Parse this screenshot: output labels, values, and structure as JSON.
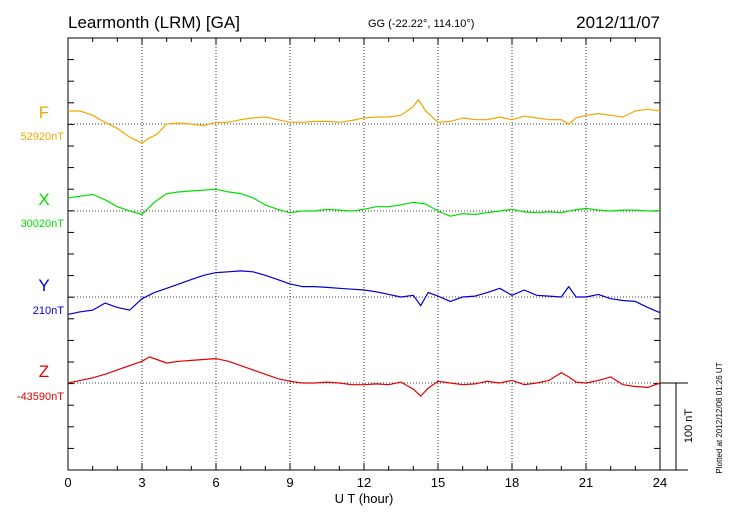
{
  "header": {
    "station": "Learmonth (LRM)  [GA]",
    "coords": "GG (-22.22°, 114.10°)",
    "date": "2012/11/07"
  },
  "footer": {
    "plotted": "Plotted at 2012/12/08 01:26 UT"
  },
  "scale_bar": {
    "label": "100 nT",
    "nT": 100
  },
  "chart_data": {
    "type": "line",
    "title": "Learmonth (LRM)  [GA]",
    "xlabel": "U T (hour)",
    "xlim": [
      0,
      24
    ],
    "xticks": [
      "0",
      "3",
      "6",
      "9",
      "12",
      "15",
      "18",
      "21",
      "24"
    ],
    "grid": true,
    "series": [
      {
        "name": "F",
        "baseline_label": "52920nT",
        "baseline_nT": 52920,
        "color": "#f0a800",
        "x": [
          0,
          0.5,
          1,
          1.5,
          2,
          2.5,
          3,
          3.3,
          3.6,
          4,
          4.5,
          5,
          5.5,
          6,
          6.5,
          7,
          7.5,
          8,
          8.5,
          9,
          9.5,
          10,
          10.5,
          11,
          11.5,
          12,
          12.5,
          13,
          13.5,
          14,
          14.2,
          14.5,
          15,
          15.5,
          16,
          16.5,
          17,
          17.5,
          18,
          18.5,
          19,
          19.5,
          20,
          20.3,
          20.6,
          21,
          21.5,
          22,
          22.5,
          23,
          23.5,
          24
        ],
        "y": [
          52935,
          52935,
          52930,
          52922,
          52915,
          52905,
          52898,
          52904,
          52908,
          52920,
          52921,
          52920,
          52918,
          52922,
          52922,
          52925,
          52927,
          52928,
          52925,
          52922,
          52922,
          52923,
          52923,
          52922,
          52924,
          52927,
          52928,
          52928,
          52930,
          52940,
          52948,
          52935,
          52922,
          52923,
          52927,
          52925,
          52925,
          52928,
          52925,
          52929,
          52927,
          52925,
          52925,
          52920,
          52927,
          52930,
          52932,
          52930,
          52928,
          52935,
          52937,
          52935
        ]
      },
      {
        "name": "X",
        "baseline_label": "30020nT",
        "baseline_nT": 30020,
        "color": "#00e000",
        "x": [
          0,
          0.5,
          1,
          1.5,
          2,
          2.5,
          3,
          3.5,
          4,
          4.5,
          5,
          5.5,
          6,
          6.5,
          7,
          7.5,
          8,
          8.5,
          9,
          9.5,
          10,
          10.5,
          11,
          11.5,
          12,
          12.5,
          13,
          13.5,
          14,
          14.5,
          15,
          15.5,
          16,
          16.5,
          17,
          17.5,
          18,
          18.5,
          19,
          19.5,
          20,
          20.5,
          21,
          21.5,
          22,
          22.5,
          23,
          23.5,
          24
        ],
        "y": [
          30035,
          30037,
          30039,
          30033,
          30025,
          30020,
          30016,
          30030,
          30040,
          30042,
          30043,
          30044,
          30045,
          30042,
          30040,
          30035,
          30027,
          30022,
          30018,
          30020,
          30020,
          30022,
          30021,
          30020,
          30022,
          30025,
          30025,
          30027,
          30030,
          30028,
          30020,
          30014,
          30017,
          30016,
          30018,
          30020,
          30022,
          30019,
          30018,
          30019,
          30018,
          30021,
          30023,
          30021,
          30020,
          30021,
          30021,
          30020,
          30020
        ]
      },
      {
        "name": "Y",
        "baseline_label": "210nT",
        "baseline_nT": 210,
        "color": "#0000d0",
        "x": [
          0,
          0.5,
          1,
          1.5,
          2,
          2.5,
          3,
          3.5,
          4,
          4.5,
          5,
          5.5,
          6,
          6.5,
          7,
          7.5,
          8,
          8.5,
          9,
          9.5,
          10,
          10.5,
          11,
          11.5,
          12,
          12.5,
          13,
          13.5,
          14,
          14.3,
          14.6,
          15,
          15.5,
          16,
          16.5,
          17,
          17.5,
          18,
          18.5,
          19,
          19.5,
          20,
          20.3,
          20.6,
          21,
          21.5,
          22,
          22.5,
          23,
          23.5,
          24
        ],
        "y": [
          190,
          193,
          195,
          203,
          198,
          195,
          208,
          215,
          220,
          225,
          230,
          235,
          238,
          239,
          240,
          239,
          235,
          230,
          225,
          222,
          222,
          221,
          220,
          219,
          218,
          216,
          213,
          210,
          212,
          200,
          215,
          211,
          205,
          210,
          211,
          215,
          220,
          212,
          218,
          212,
          211,
          210,
          222,
          210,
          210,
          213,
          208,
          206,
          205,
          198,
          192
        ]
      },
      {
        "name": "Z",
        "baseline_label": "-43590nT",
        "baseline_nT": -43590,
        "color": "#e00000",
        "x": [
          0,
          0.5,
          1,
          1.5,
          2,
          2.5,
          3,
          3.3,
          3.6,
          4,
          4.5,
          5,
          5.5,
          6,
          6.5,
          7,
          7.5,
          8,
          8.5,
          9,
          9.5,
          10,
          10.5,
          11,
          11.5,
          12,
          12.5,
          13,
          13.5,
          14,
          14.3,
          14.6,
          15,
          15.5,
          16,
          16.5,
          17,
          17.5,
          18,
          18.5,
          19,
          19.5,
          20,
          20.3,
          20.6,
          21,
          21.5,
          22,
          22.5,
          23,
          23.5,
          24
        ],
        "y": [
          -43590,
          -43587,
          -43584,
          -43580,
          -43575,
          -43570,
          -43565,
          -43560,
          -43563,
          -43567,
          -43565,
          -43564,
          -43563,
          -43562,
          -43565,
          -43570,
          -43575,
          -43580,
          -43585,
          -43588,
          -43590,
          -43590,
          -43589,
          -43590,
          -43592,
          -43592,
          -43591,
          -43592,
          -43589,
          -43597,
          -43605,
          -43596,
          -43588,
          -43590,
          -43592,
          -43591,
          -43588,
          -43590,
          -43587,
          -43592,
          -43590,
          -43587,
          -43578,
          -43583,
          -43589,
          -43590,
          -43587,
          -43583,
          -43592,
          -43594,
          -43595,
          -43590
        ]
      }
    ]
  }
}
